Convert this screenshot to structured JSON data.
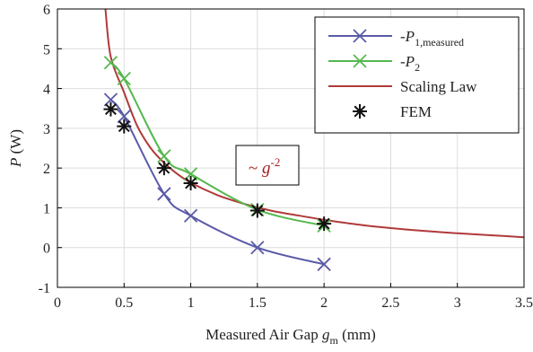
{
  "chart_data": {
    "type": "line",
    "title": "",
    "xlabel": "Measured Air Gap g_m (mm)",
    "xlabel_parts": {
      "prefix": "Measured Air Gap ",
      "var": "g",
      "sub": "m",
      "suffix": " (mm)"
    },
    "ylabel": "P (W)",
    "ylabel_parts": {
      "var": "P",
      "suffix": " (W)"
    },
    "xlim": [
      0,
      3.5
    ],
    "ylim": [
      -1,
      6
    ],
    "xticks": [
      "0",
      "0.5",
      "1",
      "1.5",
      "2",
      "2.5",
      "3",
      "3.5"
    ],
    "xtick_values": [
      0,
      0.5,
      1,
      1.5,
      2,
      2.5,
      3,
      3.5
    ],
    "yticks": [
      "-1",
      "0",
      "1",
      "2",
      "3",
      "4",
      "5",
      "6"
    ],
    "ytick_values": [
      -1,
      0,
      1,
      2,
      3,
      4,
      5,
      6
    ],
    "grid": true,
    "legend_position": "top-right",
    "annotation": {
      "text": "~ g",
      "var": "g",
      "exponent": "-2",
      "color": "#a61c1c",
      "x": 1.55,
      "y": 2.5
    },
    "series": [
      {
        "name": "-P1,measured",
        "legend": {
          "prefix": "-",
          "var": "P",
          "sub": "1,measured"
        },
        "color": "#5a5aa8",
        "marker": "x",
        "x": [
          0.4,
          0.5,
          0.8,
          1.0,
          1.5,
          2.0
        ],
        "y": [
          3.72,
          3.3,
          1.35,
          0.8,
          0.0,
          -0.42
        ]
      },
      {
        "name": "-P2",
        "legend": {
          "prefix": "-",
          "var": "P",
          "sub": "2"
        },
        "color": "#55b84e",
        "marker": "x",
        "x": [
          0.4,
          0.5,
          0.8,
          1.0,
          1.5,
          2.0
        ],
        "y": [
          4.65,
          4.25,
          2.3,
          1.85,
          0.95,
          0.55
        ]
      },
      {
        "name": "Scaling Law",
        "legend": {
          "text": "Scaling Law"
        },
        "color": "#b03a3a",
        "marker": "none",
        "x": [
          0.36,
          0.4,
          0.5,
          0.6,
          0.7,
          0.8,
          0.9,
          1.0,
          1.2,
          1.4,
          1.6,
          1.8,
          2.0,
          2.25,
          2.5,
          2.75,
          3.0,
          3.25,
          3.5
        ],
        "y": [
          6.0,
          4.8,
          3.9,
          3.05,
          2.5,
          2.13,
          1.85,
          1.63,
          1.32,
          1.1,
          0.93,
          0.81,
          0.7,
          0.58,
          0.49,
          0.42,
          0.36,
          0.31,
          0.26
        ]
      },
      {
        "name": "FEM",
        "legend": {
          "text": "FEM"
        },
        "color": "#111111",
        "marker": "asterisk",
        "x": [
          0.4,
          0.5,
          0.8,
          1.0,
          1.5,
          2.0
        ],
        "y": [
          3.48,
          3.05,
          2.0,
          1.62,
          0.93,
          0.6
        ]
      }
    ]
  }
}
